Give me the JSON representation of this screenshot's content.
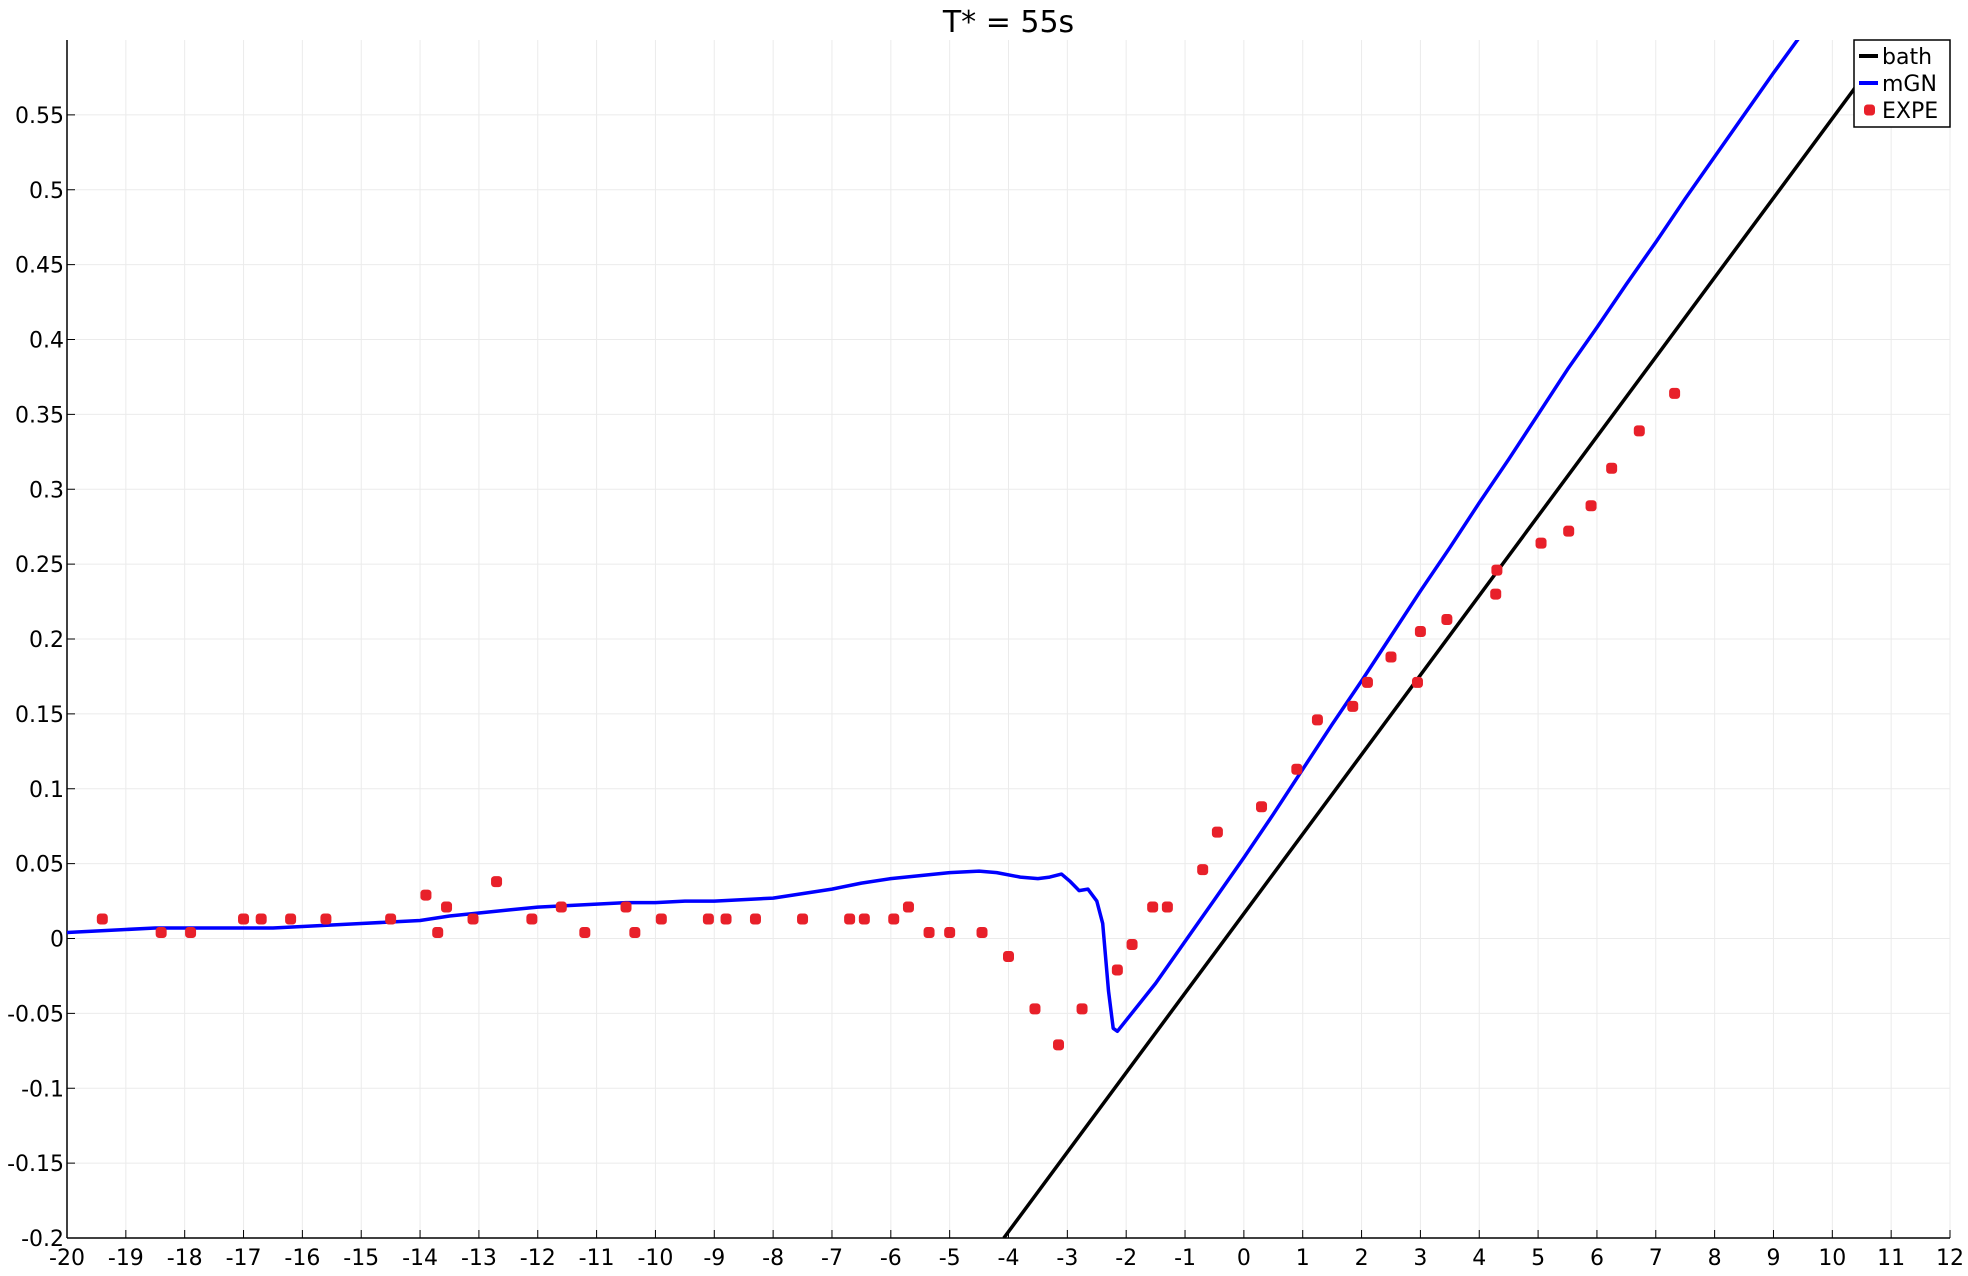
{
  "chart_data": {
    "type": "line",
    "title": "T* = 55s",
    "xlabel": "",
    "ylabel": "",
    "xlim": [
      -20,
      12
    ],
    "ylim": [
      -0.2,
      0.6
    ],
    "xticks": [
      -20,
      -19,
      -18,
      -17,
      -16,
      -15,
      -14,
      -13,
      -12,
      -11,
      -10,
      -9,
      -8,
      -7,
      -6,
      -5,
      -4,
      -3,
      -2,
      -1,
      0,
      1,
      2,
      3,
      4,
      5,
      6,
      7,
      8,
      9,
      10,
      11,
      12
    ],
    "xtick_labels": [
      "-20",
      "-19",
      "-18",
      "-17",
      "-16",
      "-15",
      "-14",
      "-13",
      "-12",
      "-11",
      "-10",
      "-9",
      "-8",
      "-7",
      "-6",
      "-5",
      "-4",
      "-3",
      "-2",
      "-1",
      "0",
      "1",
      "2",
      "3",
      "4",
      "5",
      "6",
      "7",
      "8",
      "9",
      "10",
      "11",
      "12"
    ],
    "yticks": [
      -0.2,
      -0.15,
      -0.1,
      -0.05,
      0,
      0.05,
      0.1,
      0.15,
      0.2,
      0.25,
      0.3,
      0.35,
      0.4,
      0.45,
      0.5,
      0.55
    ],
    "ytick_labels": [
      "-0.2",
      "-0.15",
      "-0.1",
      "-0.05",
      "0",
      "0.05",
      "0.1",
      "0.15",
      "0.2",
      "0.25",
      "0.3",
      "0.35",
      "0.4",
      "0.45",
      "0.5",
      "0.55"
    ],
    "grid": true,
    "legend_position": "top-right",
    "series": [
      {
        "name": "bath",
        "kind": "line",
        "color": "#000000",
        "x": [
          -4.08,
          11.12
        ],
        "y": [
          -0.2,
          0.607
        ]
      },
      {
        "name": "mGN",
        "kind": "line",
        "color": "#0000ff",
        "x": [
          -20,
          -19.5,
          -19,
          -18.5,
          -18,
          -17.5,
          -17,
          -16.5,
          -16,
          -15.5,
          -15,
          -14.5,
          -14,
          -13.5,
          -13,
          -12.5,
          -12,
          -11.5,
          -11,
          -10.5,
          -10,
          -9.5,
          -9,
          -8.5,
          -8,
          -7.5,
          -7,
          -6.5,
          -6,
          -5.5,
          -5,
          -4.5,
          -4.2,
          -3.8,
          -3.5,
          -3.3,
          -3.1,
          -2.95,
          -2.8,
          -2.65,
          -2.5,
          -2.4,
          -2.3,
          -2.22,
          -2.15,
          -1.5,
          -1,
          -0.5,
          0,
          0.5,
          1,
          1.5,
          2,
          2.5,
          3,
          3.5,
          4,
          4.5,
          5,
          5.5,
          6,
          6.5,
          7,
          7.5,
          8,
          8.5,
          9,
          9.5,
          10,
          10.5,
          11,
          11.12
        ],
        "y": [
          0.004,
          0.005,
          0.006,
          0.007,
          0.007,
          0.007,
          0.007,
          0.007,
          0.008,
          0.009,
          0.01,
          0.011,
          0.012,
          0.015,
          0.017,
          0.019,
          0.021,
          0.022,
          0.023,
          0.024,
          0.024,
          0.025,
          0.025,
          0.026,
          0.027,
          0.03,
          0.033,
          0.037,
          0.04,
          0.042,
          0.044,
          0.045,
          0.044,
          0.041,
          0.04,
          0.041,
          0.043,
          0.038,
          0.032,
          0.033,
          0.025,
          0.01,
          -0.035,
          -0.06,
          -0.062,
          -0.03,
          -0.002,
          0.026,
          0.054,
          0.083,
          0.113,
          0.143,
          0.172,
          0.202,
          0.232,
          0.261,
          0.291,
          0.32,
          0.35,
          0.38,
          0.408,
          0.437,
          0.465,
          0.494,
          0.522,
          0.55,
          0.578,
          0.605,
          0.607,
          0.607,
          0.607,
          0.607
        ]
      },
      {
        "name": "EXPE",
        "kind": "scatter",
        "color": "#e8202a",
        "x": [
          -19.4,
          -18.4,
          -17.9,
          -17.0,
          -16.7,
          -16.2,
          -15.6,
          -14.5,
          -13.9,
          -13.7,
          -13.55,
          -13.1,
          -12.7,
          -12.1,
          -11.6,
          -11.2,
          -10.5,
          -10.35,
          -9.9,
          -9.1,
          -8.8,
          -8.3,
          -7.5,
          -6.7,
          -6.45,
          -5.95,
          -5.7,
          -5.35,
          -5.0,
          -4.45,
          -4.0,
          -3.55,
          -3.15,
          -2.75,
          -2.15,
          -1.9,
          -1.55,
          -1.3,
          -0.7,
          -0.45,
          0.3,
          0.9,
          1.25,
          1.85,
          2.1,
          2.5,
          2.95,
          3.0,
          3.45,
          4.28,
          4.3,
          5.05,
          5.52,
          5.9,
          6.25,
          6.72,
          7.32
        ],
        "y": [
          0.013,
          0.004,
          0.004,
          0.013,
          0.013,
          0.013,
          0.013,
          0.013,
          0.029,
          0.004,
          0.021,
          0.013,
          0.038,
          0.013,
          0.021,
          0.004,
          0.021,
          0.004,
          0.013,
          0.013,
          0.013,
          0.013,
          0.013,
          0.013,
          0.013,
          0.013,
          0.021,
          0.004,
          0.004,
          0.004,
          -0.012,
          -0.047,
          -0.071,
          -0.047,
          -0.021,
          -0.004,
          0.021,
          0.021,
          0.046,
          0.071,
          0.088,
          0.113,
          0.146,
          0.155,
          0.171,
          0.188,
          0.171,
          0.205,
          0.213,
          0.23,
          0.246,
          0.264,
          0.272,
          0.289,
          0.314,
          0.339,
          0.364
        ]
      }
    ]
  }
}
